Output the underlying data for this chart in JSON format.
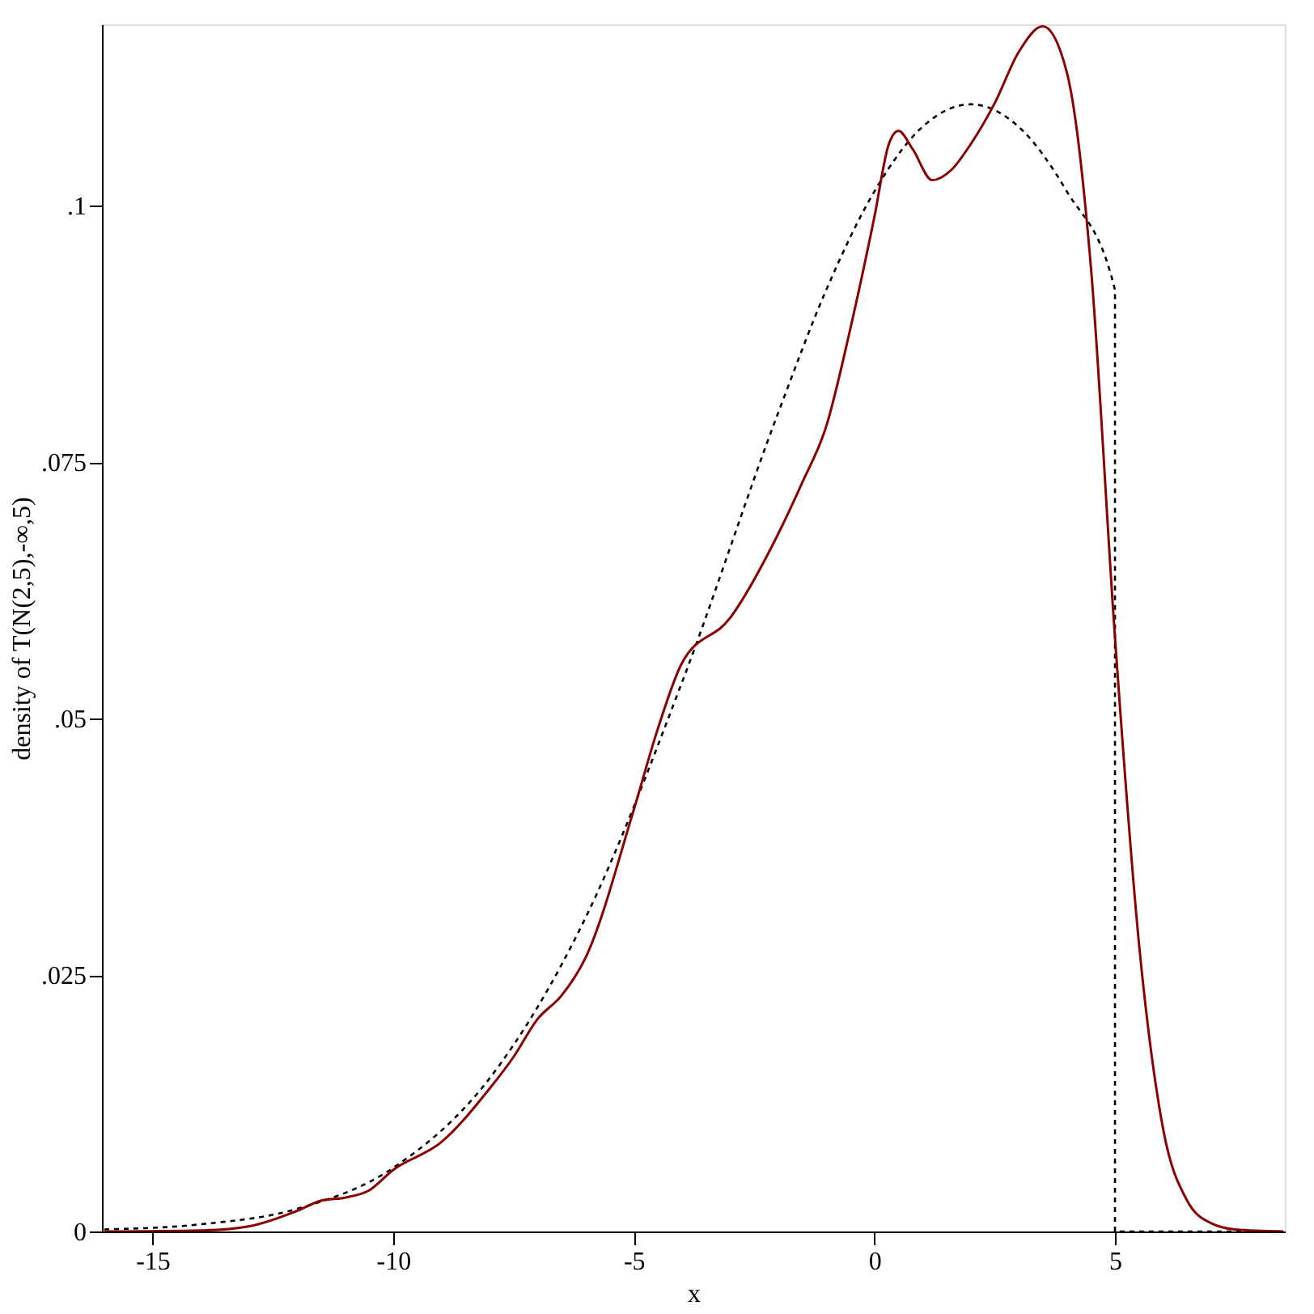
{
  "chart_data": {
    "type": "line",
    "xlabel": "x",
    "ylabel": "density of T(N(2,5),-∞,5)",
    "xlim": [
      -16.05,
      8.53
    ],
    "xticks": [
      -15,
      -10,
      -5,
      0,
      5
    ],
    "ylim": [
      0,
      0.1177
    ],
    "yticks": [
      0,
      {
        "value": 0.025,
        "label": ".025"
      },
      {
        "value": 0.05,
        "label": ".05"
      },
      {
        "value": 0.075,
        "label": ".075"
      },
      {
        "value": 0.1,
        "label": ".1"
      }
    ],
    "grid": false,
    "marker": "none",
    "series": [
      {
        "color": "#000000",
        "line_style": "dashed",
        "x": [
          -16,
          -14,
          -12,
          -10,
          -8,
          -6,
          -4,
          -2,
          -1,
          0,
          1,
          2,
          3,
          4,
          5,
          5,
          8.5
        ],
        "values": [
          0.0002,
          0.0007,
          0.0022,
          0.0062,
          0.0149,
          0.0306,
          0.0535,
          0.0798,
          0.0918,
          0.1014,
          0.1077,
          0.1099,
          0.1077,
          0.1014,
          0.0918,
          0,
          0
        ]
      },
      {
        "color": "#8b0000",
        "line_style": "solid",
        "x": [
          -16,
          -14,
          -13,
          -12,
          -11.5,
          -11,
          -10.5,
          -10,
          -9,
          -8,
          -7.5,
          -7,
          -6.5,
          -6,
          -5,
          -4.5,
          -4,
          -3,
          -2,
          -1.5,
          -1,
          -0.5,
          0,
          0.3,
          0.5,
          0.8,
          1.2,
          1.6,
          2,
          2.5,
          3,
          3.5,
          4,
          4.5,
          5,
          5.5,
          6,
          6.5,
          7,
          7.5,
          8.5
        ],
        "values": [
          0,
          0.0001,
          0.0005,
          0.002,
          0.003,
          0.0033,
          0.004,
          0.006,
          0.0087,
          0.0139,
          0.017,
          0.0207,
          0.023,
          0.0267,
          0.0411,
          0.049,
          0.0554,
          0.0598,
          0.068,
          0.073,
          0.0785,
          0.088,
          0.0989,
          0.106,
          0.1073,
          0.1055,
          0.1025,
          0.1035,
          0.106,
          0.11,
          0.115,
          0.1175,
          0.113,
          0.094,
          0.0579,
          0.028,
          0.01,
          0.003,
          0.0008,
          0.0002,
          0
        ]
      }
    ]
  }
}
